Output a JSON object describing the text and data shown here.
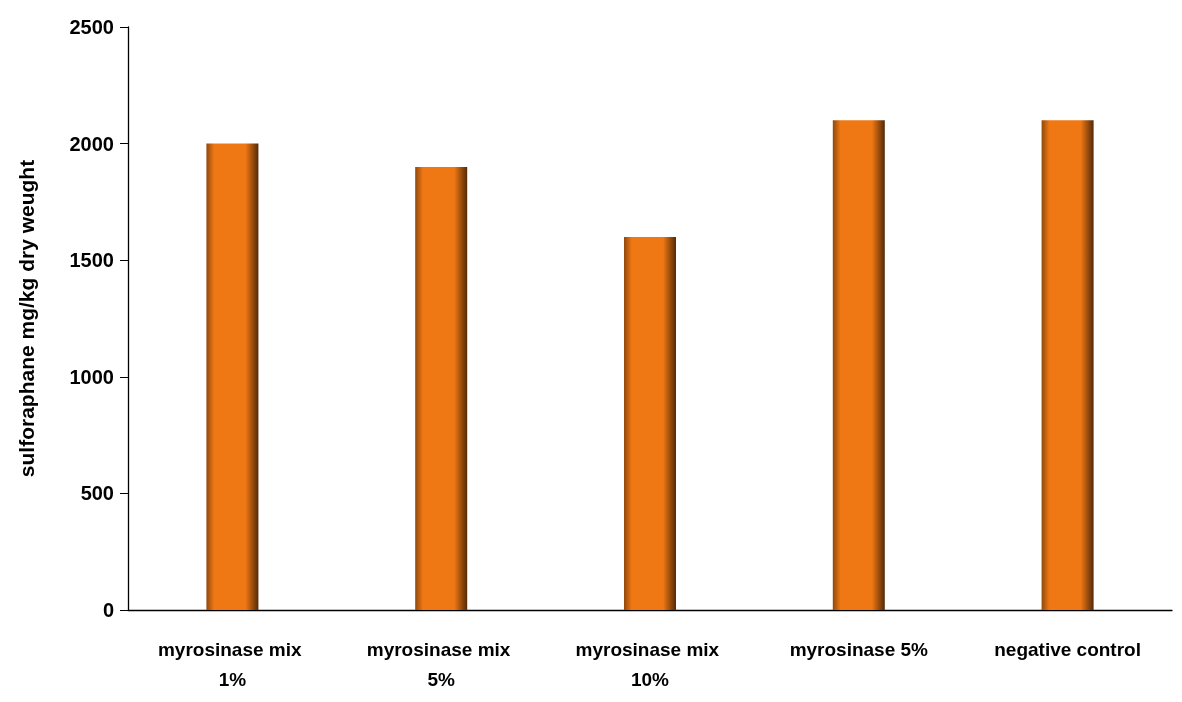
{
  "chart_data": {
    "type": "bar",
    "ylabel": "sulforaphane mg/kg dry weught",
    "categories": [
      "myrosinase mix 1%",
      "myrosinase mix 5%",
      "myrosinase mix 10%",
      "myrosinase 5%",
      "negative control"
    ],
    "values": [
      2000,
      1900,
      1600,
      2100,
      2100
    ],
    "color": "#f07814",
    "ylim": [
      0,
      2500
    ],
    "yticks": [
      0,
      500,
      1000,
      1500,
      2000,
      2500
    ],
    "grid": false
  }
}
